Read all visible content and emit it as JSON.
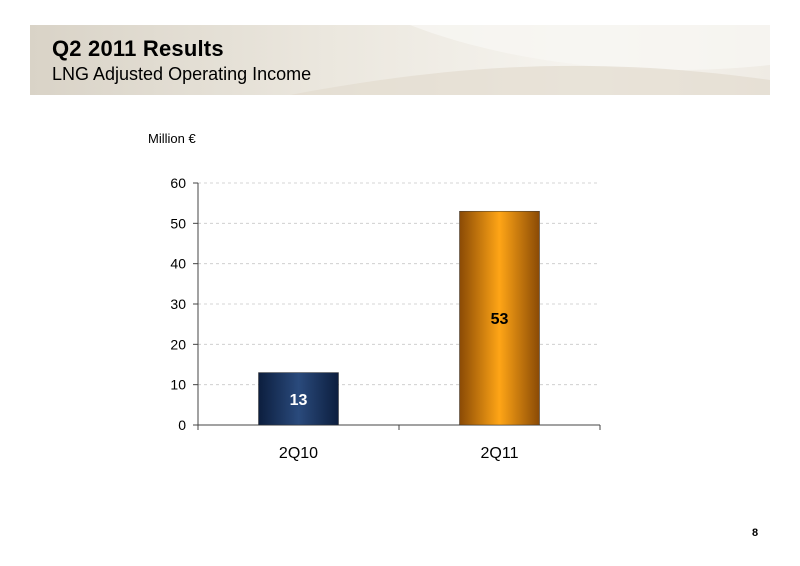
{
  "header": {
    "title": "Q2 2011 Results",
    "subtitle": "LNG Adjusted Operating Income"
  },
  "page_number": "8",
  "chart_data": {
    "type": "bar",
    "unit_label": "Million €",
    "categories": [
      "2Q10",
      "2Q11"
    ],
    "values": [
      13,
      53
    ],
    "data_labels": [
      "13",
      "53"
    ],
    "ylim": [
      0,
      60
    ],
    "yticks": [
      0,
      10,
      20,
      30,
      40,
      50,
      60
    ],
    "grid": true,
    "legend": "none",
    "colors": {
      "bar_2Q10": "#1f3a68",
      "bar_2Q11": "#f39a1c",
      "label_2Q10": "#ffffff",
      "label_2Q11": "#000000"
    }
  }
}
